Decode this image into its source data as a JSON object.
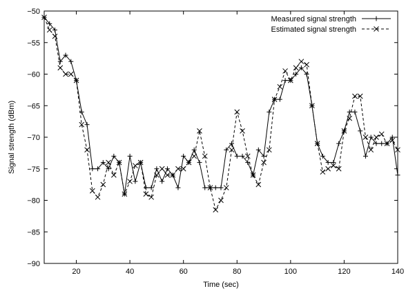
{
  "chart_data": {
    "type": "line",
    "title": "",
    "xlabel": "Time (sec)",
    "ylabel": "Signal strength (dBm)",
    "xlim": [
      8,
      140
    ],
    "ylim": [
      -90,
      -50
    ],
    "xticks": [
      20,
      40,
      60,
      80,
      100,
      120,
      140
    ],
    "yticks": [
      -90,
      -85,
      -80,
      -75,
      -70,
      -65,
      -60,
      -55,
      -50
    ],
    "xtick_labels": [
      "20",
      "40",
      "60",
      "80",
      "100",
      "120",
      "140"
    ],
    "ytick_labels": [
      "−90",
      "−85",
      "−80",
      "−75",
      "−70",
      "−65",
      "−60",
      "−55",
      "−50"
    ],
    "grid": false,
    "legend_position": "top-right",
    "series": [
      {
        "name": "Measured signal strength",
        "marker": "plus",
        "line_style": "solid",
        "color": "#000000",
        "x": [
          8,
          10,
          12,
          14,
          16,
          18,
          20,
          22,
          24,
          26,
          28,
          30,
          32,
          34,
          36,
          38,
          40,
          42,
          44,
          46,
          48,
          50,
          52,
          54,
          56,
          58,
          60,
          62,
          64,
          66,
          68,
          70,
          72,
          74,
          76,
          78,
          80,
          82,
          84,
          86,
          88,
          90,
          92,
          94,
          96,
          98,
          100,
          102,
          104,
          106,
          108,
          110,
          112,
          114,
          116,
          118,
          120,
          122,
          124,
          126,
          128,
          130,
          132,
          134,
          136,
          138,
          140
        ],
        "y": [
          -51,
          -52,
          -53,
          -58,
          -57,
          -58,
          -61,
          -66,
          -68,
          -75,
          -75,
          -74,
          -75,
          -73,
          -74,
          -79,
          -73,
          -77,
          -74,
          -78,
          -78,
          -75,
          -77,
          -75,
          -76,
          -78,
          -73,
          -74,
          -72,
          -74,
          -78,
          -78,
          -78,
          -78,
          -72,
          -71,
          -73,
          -73,
          -74,
          -76,
          -72,
          -73,
          -66,
          -64,
          -64,
          -61,
          -61,
          -60,
          -59,
          -60,
          -65,
          -71,
          -73,
          -74,
          -74,
          -71,
          -69,
          -66,
          -66,
          -69,
          -73,
          -70,
          -71,
          -71,
          -71,
          -70,
          -76
        ]
      },
      {
        "name": "Estimated signal strength",
        "marker": "cross",
        "line_style": "dashed",
        "color": "#000000",
        "x": [
          8,
          10,
          12,
          14,
          16,
          18,
          20,
          22,
          24,
          26,
          28,
          30,
          32,
          34,
          36,
          38,
          40,
          42,
          44,
          46,
          48,
          50,
          52,
          54,
          56,
          58,
          60,
          62,
          64,
          66,
          68,
          70,
          72,
          74,
          76,
          78,
          80,
          82,
          84,
          86,
          88,
          90,
          92,
          94,
          96,
          98,
          100,
          102,
          104,
          106,
          108,
          110,
          112,
          114,
          116,
          118,
          120,
          122,
          124,
          126,
          128,
          130,
          132,
          134,
          136,
          138,
          140
        ],
        "y": [
          -51,
          -53,
          -54,
          -59,
          -60,
          -60,
          -61,
          -68,
          -72,
          -78.5,
          -79.5,
          -77.5,
          -74,
          -76,
          -74,
          -79,
          -77,
          -74.5,
          -74,
          -79,
          -79.5,
          -76,
          -75,
          -76,
          -76,
          -75,
          -75,
          -74,
          -73,
          -69,
          -73,
          -78,
          -81.5,
          -80,
          -78,
          -72,
          -66,
          -69,
          -73,
          -76,
          -77.5,
          -74,
          -72,
          -64,
          -62,
          -59.5,
          -61,
          -59,
          -58,
          -58.5,
          -65,
          -71,
          -75.5,
          -75,
          -74.5,
          -75,
          -69,
          -67,
          -63.5,
          -63.5,
          -70,
          -72,
          -70,
          -69.5,
          -71,
          -70.5,
          -72
        ]
      }
    ]
  }
}
